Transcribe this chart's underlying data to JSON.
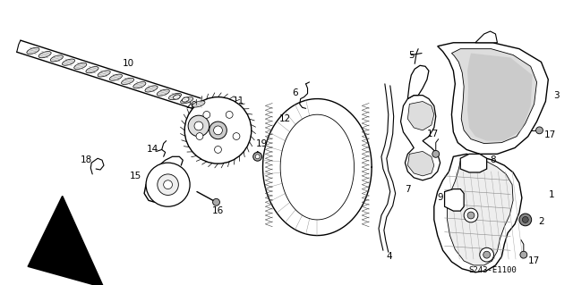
{
  "bg_color": "#ffffff",
  "line_color": "#000000",
  "fig_width": 6.4,
  "fig_height": 3.19,
  "dpi": 100,
  "diagram_code": "S243-E1100"
}
